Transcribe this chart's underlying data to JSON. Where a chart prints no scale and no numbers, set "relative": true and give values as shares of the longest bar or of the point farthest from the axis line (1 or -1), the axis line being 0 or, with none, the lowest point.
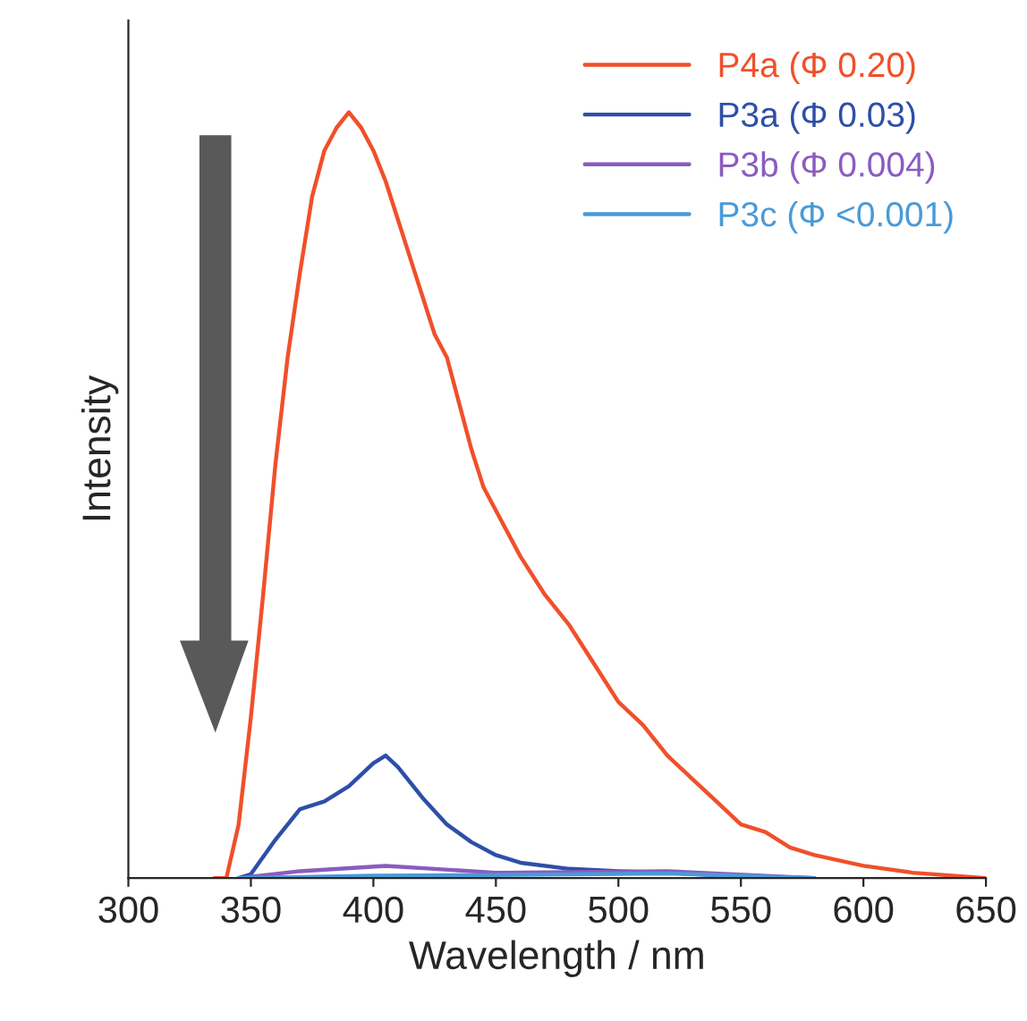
{
  "chart_data": {
    "type": "line",
    "xlabel": "Wavelength / nm",
    "ylabel": "Intensity",
    "relative": true,
    "xlim": [
      300,
      650
    ],
    "xticks": [
      300,
      350,
      400,
      450,
      500,
      550,
      600,
      650
    ],
    "legend": "top right",
    "grid": false,
    "series": [
      {
        "name": "P4a (Φ 0.20)",
        "color": "#f0502a",
        "x": [
          335,
          340,
          345,
          350,
          355,
          360,
          365,
          370,
          375,
          380,
          385,
          390,
          395,
          400,
          405,
          410,
          415,
          420,
          425,
          430,
          435,
          440,
          445,
          450,
          460,
          470,
          480,
          490,
          500,
          510,
          520,
          530,
          540,
          550,
          560,
          570,
          580,
          600,
          620,
          650
        ],
        "values": [
          0,
          0,
          0.07,
          0.21,
          0.37,
          0.54,
          0.68,
          0.79,
          0.89,
          0.95,
          0.98,
          1.0,
          0.98,
          0.95,
          0.91,
          0.86,
          0.81,
          0.76,
          0.71,
          0.68,
          0.62,
          0.56,
          0.51,
          0.48,
          0.42,
          0.37,
          0.33,
          0.28,
          0.23,
          0.2,
          0.16,
          0.13,
          0.1,
          0.07,
          0.06,
          0.04,
          0.03,
          0.016,
          0.007,
          0
        ]
      },
      {
        "name": "P3a (Φ 0.03)",
        "color": "#2e4fa8",
        "x": [
          345,
          350,
          360,
          370,
          380,
          390,
          400,
          405,
          410,
          420,
          430,
          440,
          450,
          460,
          480,
          500,
          520,
          550,
          580
        ],
        "values": [
          0,
          0.005,
          0.05,
          0.09,
          0.1,
          0.12,
          0.15,
          0.16,
          0.145,
          0.105,
          0.07,
          0.047,
          0.03,
          0.02,
          0.012,
          0.009,
          0.007,
          0.002,
          0
        ]
      },
      {
        "name": "P3b (Φ 0.004)",
        "color": "#8a5cc0",
        "x": [
          345,
          370,
          405,
          450,
          520,
          580
        ],
        "values": [
          0,
          0.009,
          0.016,
          0.007,
          0.009,
          0
        ]
      },
      {
        "name": "P3c (Φ <0.001)",
        "color": "#4a9ad8",
        "x": [
          345,
          400,
          450,
          520,
          580
        ],
        "values": [
          0,
          0.003,
          0.004,
          0.006,
          0
        ]
      }
    ]
  }
}
